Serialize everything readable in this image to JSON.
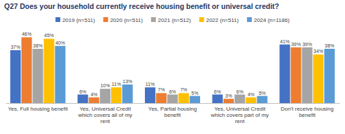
{
  "chart_data": {
    "type": "bar",
    "title": "Q27 Does your household currently receive housing benefit or universal credit?",
    "categories": [
      "Yes, Full housing benefit",
      "Yes, Universal Credit which covers all of my rent",
      "Yes, Partial housing benefit",
      "Yes, Universal Credit which covers part of my rent",
      "Don't receive housing benefit"
    ],
    "series": [
      {
        "name": "2019 (n=511)",
        "color": "#4472c4",
        "values": [
          37,
          6,
          11,
          6,
          41
        ],
        "value_labels": [
          "37%",
          "6%",
          "11%",
          "6%",
          "41%"
        ]
      },
      {
        "name": "2020 (n=511)",
        "color": "#ed7d31",
        "values": [
          46,
          4,
          7,
          3,
          39
        ],
        "value_labels": [
          "46%",
          "4%",
          "7%",
          "3%",
          "39%"
        ]
      },
      {
        "name": "2021 (n=512)",
        "color": "#a5a5a5",
        "values": [
          38,
          10,
          6,
          6,
          39
        ],
        "value_labels": [
          "38%",
          "10%",
          "6%",
          "6%",
          "39%"
        ]
      },
      {
        "name": "2022 (n=511)",
        "color": "#ffc000",
        "values": [
          45,
          11,
          7,
          4,
          34
        ],
        "value_labels": [
          "45%",
          "11%",
          "7%",
          "4%",
          "34%"
        ]
      },
      {
        "name": "2024 (n=1186)",
        "color": "#5b9bd5",
        "values": [
          40,
          13,
          5,
          5,
          38
        ],
        "value_labels": [
          "40%",
          "13%",
          "5%",
          "5%",
          "38%"
        ]
      }
    ],
    "ylim": [
      0,
      50
    ],
    "data_labels": true,
    "tick_labels": "x",
    "legend": "top"
  }
}
